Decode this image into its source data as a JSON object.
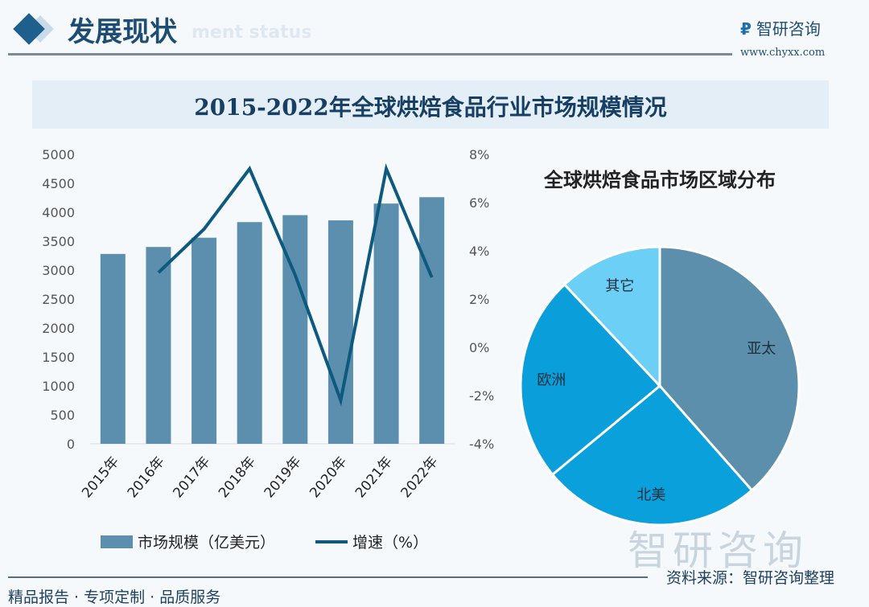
{
  "header": {
    "section_title": "发展现状",
    "section_subtitle": "ment status",
    "brand": "智研咨询",
    "url": "www.chyxx.com"
  },
  "footer": {
    "source": "资料来源：智研咨询整理",
    "slogan": "精品报告 · 专项定制 · 品质服务",
    "watermark": "智研咨询"
  },
  "colors": {
    "bar": "#5b8fad",
    "line": "#0e5a7e",
    "asia": "#5b8fab",
    "na": "#0aa0dc",
    "eu": "#0a9fdb",
    "other": "#6ccff6"
  },
  "chart_data": [
    {
      "type": "bar",
      "title": "2015-2022年全球烘焙食品行业市场规模情况",
      "categories": [
        "2015年",
        "2016年",
        "2017年",
        "2018年",
        "2019年",
        "2020年",
        "2021年",
        "2022年"
      ],
      "series": [
        {
          "name": "市场规模（亿美元）",
          "type": "bar",
          "axis": "left",
          "values": [
            3280,
            3400,
            3560,
            3830,
            3950,
            3860,
            4150,
            4260
          ]
        },
        {
          "name": "增速（%）",
          "type": "line",
          "axis": "right",
          "values": [
            null,
            3.1,
            4.9,
            7.4,
            3.0,
            -2.2,
            7.4,
            2.9
          ]
        }
      ],
      "ylim": [
        0,
        5000
      ],
      "yticks": [
        "0",
        "500",
        "1000",
        "1500",
        "2000",
        "2500",
        "3000",
        "3500",
        "4000",
        "4500",
        "5000"
      ],
      "y2lim": [
        -4,
        8
      ],
      "y2ticks": [
        "-4%",
        "-2%",
        "0%",
        "2%",
        "4%",
        "6%",
        "8%"
      ],
      "legend": "bottom"
    },
    {
      "type": "pie",
      "title": "全球烘焙食品市场区域分布",
      "labels": [
        "亚太",
        "北美",
        "欧洲",
        "其它"
      ],
      "values": [
        38.5,
        25.5,
        24,
        12
      ]
    }
  ]
}
